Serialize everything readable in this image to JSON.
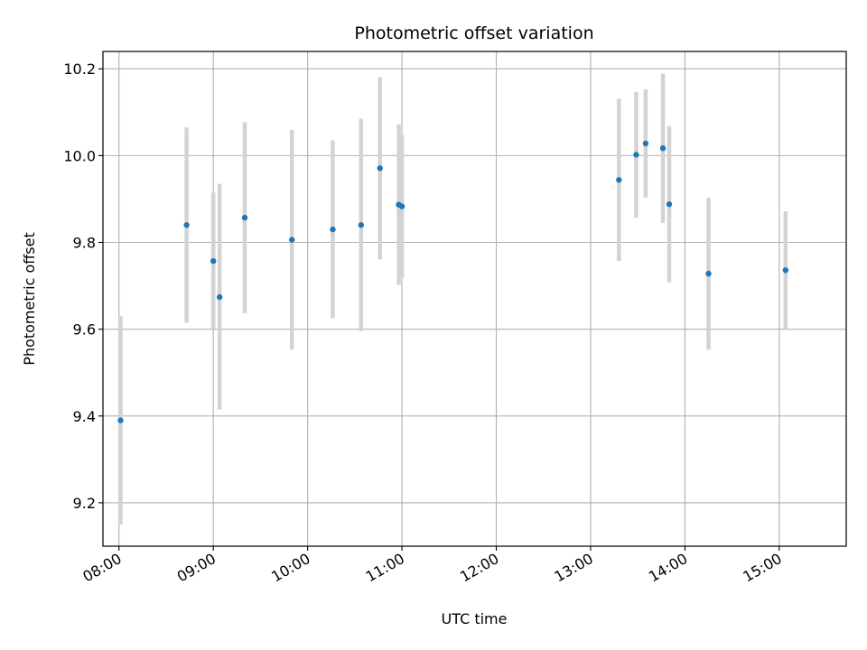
{
  "chart_data": {
    "type": "scatter",
    "title": "Photometric offset variation",
    "xlabel": "UTC time",
    "ylabel": "Photometric offset",
    "x_unit": "hours UTC",
    "xlim": [
      7.83,
      15.71
    ],
    "ylim": [
      9.1,
      10.24
    ],
    "xticks": [
      8,
      9,
      10,
      11,
      12,
      13,
      14,
      15
    ],
    "xtick_labels": [
      "08:00",
      "09:00",
      "10:00",
      "11:00",
      "12:00",
      "13:00",
      "14:00",
      "15:00"
    ],
    "yticks": [
      9.2,
      9.4,
      9.6,
      9.8,
      10.0,
      10.2
    ],
    "ytick_labels": [
      "9.2",
      "9.4",
      "9.6",
      "9.8",
      "10.0",
      "10.2"
    ],
    "grid": true,
    "colors": {
      "point": "#1f77b4",
      "errorbar": "#d3d3d3",
      "grid": "#b0b0b0"
    },
    "points": [
      {
        "time": "08:01",
        "y": 9.39,
        "err_low": 9.15,
        "err_high": 9.63
      },
      {
        "time": "08:43",
        "y": 9.84,
        "err_low": 9.615,
        "err_high": 10.065
      },
      {
        "time": "09:00",
        "y": 9.757,
        "err_low": 9.6,
        "err_high": 9.915
      },
      {
        "time": "09:04",
        "y": 9.674,
        "err_low": 9.415,
        "err_high": 9.935
      },
      {
        "time": "09:20",
        "y": 9.857,
        "err_low": 9.637,
        "err_high": 10.077
      },
      {
        "time": "09:50",
        "y": 9.806,
        "err_low": 9.553,
        "err_high": 10.059
      },
      {
        "time": "10:16",
        "y": 9.83,
        "err_low": 9.625,
        "err_high": 10.035
      },
      {
        "time": "10:34",
        "y": 9.84,
        "err_low": 9.595,
        "err_high": 10.085
      },
      {
        "time": "10:46",
        "y": 9.971,
        "err_low": 9.761,
        "err_high": 10.181
      },
      {
        "time": "10:58",
        "y": 9.887,
        "err_low": 9.702,
        "err_high": 10.072
      },
      {
        "time": "11:00",
        "y": 9.883,
        "err_low": 9.718,
        "err_high": 10.048
      },
      {
        "time": "13:18",
        "y": 9.944,
        "err_low": 9.757,
        "err_high": 10.131
      },
      {
        "time": "13:29",
        "y": 10.002,
        "err_low": 9.857,
        "err_high": 10.147
      },
      {
        "time": "13:35",
        "y": 10.028,
        "err_low": 9.903,
        "err_high": 10.153
      },
      {
        "time": "13:46",
        "y": 10.017,
        "err_low": 9.845,
        "err_high": 10.189
      },
      {
        "time": "13:50",
        "y": 9.888,
        "err_low": 9.708,
        "err_high": 10.068
      },
      {
        "time": "14:15",
        "y": 9.728,
        "err_low": 9.553,
        "err_high": 9.903
      },
      {
        "time": "15:04",
        "y": 9.736,
        "err_low": 9.6,
        "err_high": 9.872
      }
    ]
  }
}
